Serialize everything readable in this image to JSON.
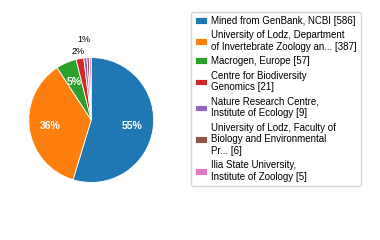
{
  "chart_data": {
    "type": "pie",
    "categories": [
      "Mined from GenBank, NCBI [586]",
      "University of Lodz, Department\nof Invertebrate Zoology an... [387]",
      "Macrogen, Europe [57]",
      "Centre for Biodiversity\nGenomics [21]",
      "Nature Research Centre,\nInstitute of Ecology [9]",
      "University of Lodz, Faculty of\nBiology and Environmental\nPr... [6]",
      "Ilia State University,\nInstitute of Zoology [5]"
    ],
    "values": [
      54.7,
      36.1,
      5.3,
      2.0,
      0.8,
      0.6,
      0.5
    ],
    "value_labels": [
      "55%",
      "36%",
      "5%",
      "2%",
      "1%",
      null,
      null
    ],
    "data_labels": true,
    "legend": "upper left"
  }
}
